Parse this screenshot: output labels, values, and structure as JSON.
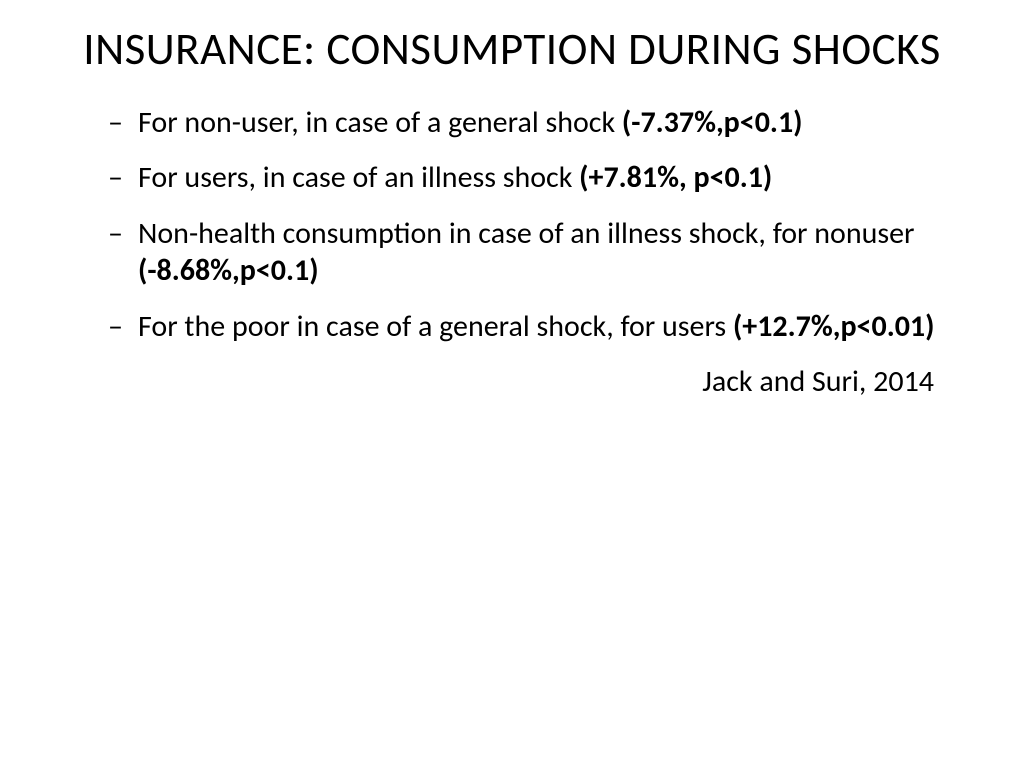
{
  "slide": {
    "title": "INSURANCE: CONSUMPTION DURING SHOCKS",
    "bullets": [
      {
        "text": "For non-user, in case of a general shock ",
        "stat": "(-7.37%,p<0.1)"
      },
      {
        "text": "For users, in case of an illness shock ",
        "stat": "(+7.81%, p<0.1)"
      },
      {
        "text": "Non-health consumption in case of an illness shock, for nonuser ",
        "stat": "(-8.68%,p<0.1)"
      },
      {
        "text": "For the poor in case of a general shock, for users ",
        "stat": "(+12.7%,p<0.01)"
      }
    ],
    "citation": "Jack and Suri, 2014"
  },
  "style": {
    "background_color": "#ffffff",
    "text_color": "#000000",
    "title_fontsize": 45,
    "body_fontsize": 30,
    "font_family": "Calibri"
  }
}
